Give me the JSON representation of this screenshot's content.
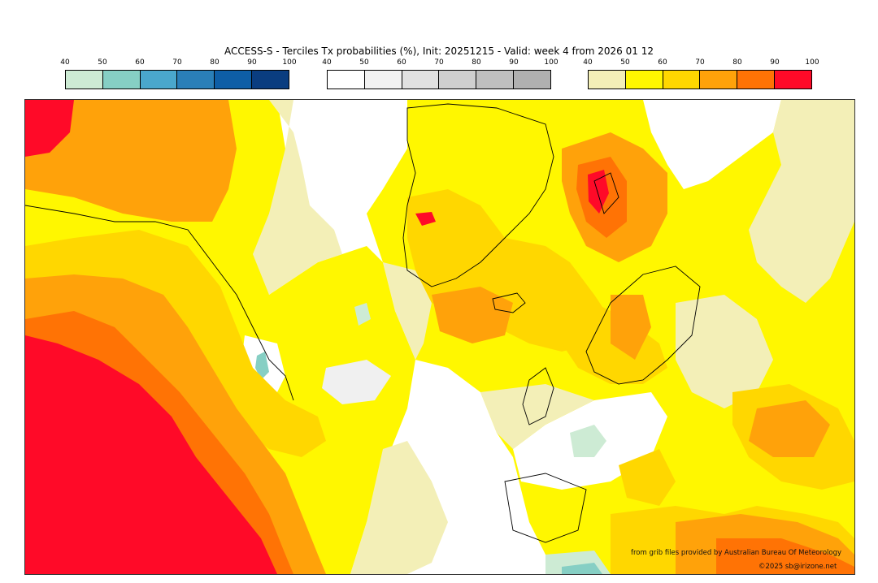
{
  "title": "ACCESS-S - Terciles Tx probabilities (%), Init: 20251215 - Valid: week 4 from 2026 01 12",
  "colorbars": [
    {
      "ticks": [
        "40",
        "50",
        "60",
        "70",
        "80",
        "90",
        "100"
      ],
      "colors": [
        "#cdebd4",
        "#86cfc4",
        "#4aa7cc",
        "#2a7fb8",
        "#0e5ea6",
        "#0a3d80"
      ]
    },
    {
      "ticks": [
        "40",
        "50",
        "60",
        "70",
        "80",
        "90",
        "100"
      ],
      "colors": [
        "#ffffff",
        "#f2f2f2",
        "#e1e1e1",
        "#cfcfcf",
        "#bfbfbf",
        "#b0b0b0"
      ]
    },
    {
      "ticks": [
        "40",
        "50",
        "60",
        "70",
        "80",
        "90",
        "100"
      ],
      "colors": [
        "#f3efb7",
        "#fff700",
        "#ffd700",
        "#ffa20a",
        "#ff7305",
        "#ff0a28"
      ]
    }
  ],
  "credits": {
    "source": "from grib files provided by Australian Bureau Of Meteorology",
    "copyright": "©2025 sb@irizone.net"
  }
}
